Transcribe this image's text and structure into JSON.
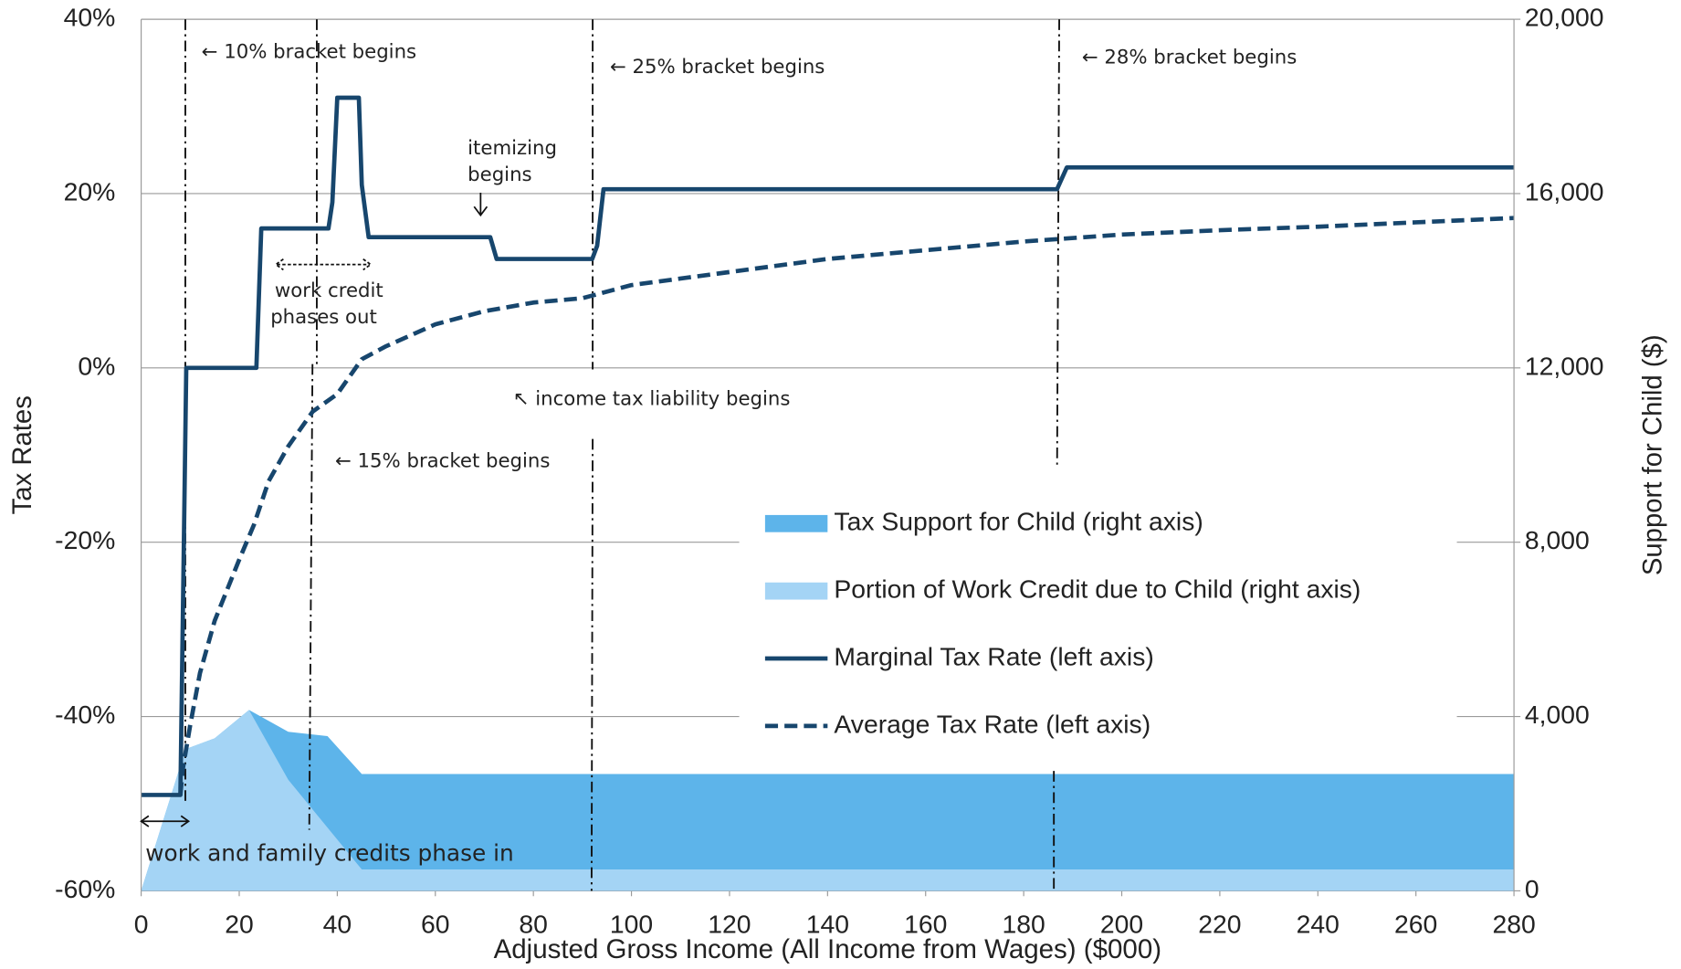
{
  "chart_data": {
    "type": "line",
    "xlabel": "Adjusted Gross Income (All Income from Wages) ($000)",
    "ylabel": "Tax Rates",
    "y2label": "Support for Child ($)",
    "xlim": [
      0,
      280
    ],
    "xticks": [
      0,
      20,
      40,
      60,
      80,
      100,
      120,
      140,
      160,
      180,
      200,
      220,
      240,
      260,
      280
    ],
    "ylim": [
      -60,
      40
    ],
    "yticks": [
      {
        "value": -60,
        "label": "-60%"
      },
      {
        "value": -40,
        "label": "-40%"
      },
      {
        "value": -20,
        "label": "-20%"
      },
      {
        "value": 0,
        "label": "0%"
      },
      {
        "value": 20,
        "label": "20%"
      },
      {
        "value": 40,
        "label": "40%"
      }
    ],
    "y2lim": [
      0,
      20000
    ],
    "y2ticks": [
      0,
      {
        "value": 4000,
        "label": "4,000"
      },
      {
        "value": 8000,
        "label": "8,000"
      },
      {
        "value": 12000,
        "label": "12,000"
      },
      {
        "value": 16000,
        "label": "16,000"
      },
      {
        "value": 20000,
        "label": "20,000"
      }
    ],
    "grid": true,
    "series": [
      {
        "name": "Tax Support for Child (right axis)",
        "color": "#5db4ea",
        "style": "area",
        "axis": "y2",
        "x": [
          0,
          8,
          9,
          15,
          22,
          30,
          38,
          45,
          280
        ],
        "values": [
          0,
          2875,
          3250,
          3500,
          4150,
          3650,
          3550,
          2680,
          2680
        ]
      },
      {
        "name": "Portion of Work Credit due to Child (right axis)",
        "color": "#a4d4f5",
        "style": "area",
        "axis": "y2",
        "x": [
          0,
          8,
          9,
          15,
          22,
          30,
          45,
          280
        ],
        "values": [
          0,
          2875,
          3250,
          3500,
          4150,
          2550,
          490,
          490
        ]
      },
      {
        "name": "Marginal Tax Rate (left axis)",
        "color": "#17466d",
        "style": "solid",
        "x": [
          0,
          8,
          9.2,
          23.5,
          24.5,
          38.2,
          39,
          40,
          44.4,
          45,
          46.4,
          71.2,
          72.5,
          92,
          93,
          94.3,
          186.8,
          188.8,
          280
        ],
        "values": [
          -49,
          -49,
          0,
          0,
          16,
          16,
          19,
          31,
          31,
          21,
          15,
          15,
          12.5,
          12.5,
          14,
          20.5,
          20.5,
          23,
          23
        ]
      },
      {
        "name": "Average Tax Rate (left axis)",
        "color": "#17466d",
        "style": "dashed",
        "x": [
          8,
          8.5,
          10,
          12,
          15,
          20,
          23,
          26,
          30,
          35,
          40,
          45,
          50,
          60,
          70,
          80,
          90,
          100,
          120,
          140,
          160,
          180,
          200,
          220,
          240,
          260,
          280
        ],
        "values": [
          -49,
          -46,
          -41,
          -35,
          -29,
          -22,
          -18,
          -13,
          -9,
          -5,
          -3,
          1,
          2.5,
          5,
          6.5,
          7.5,
          8,
          9.5,
          11,
          12.5,
          13.5,
          14.5,
          15.3,
          15.8,
          16.2,
          16.7,
          17.2
        ]
      }
    ],
    "annotations": [
      "← 10% bracket begins",
      "← 25% bracket begins",
      "← 28% bracket begins",
      "itemizing",
      "begins",
      "work credit",
      "phases out",
      "↖ income tax liability  begins",
      "← 15% bracket begins",
      "work and family credits phase in"
    ]
  }
}
